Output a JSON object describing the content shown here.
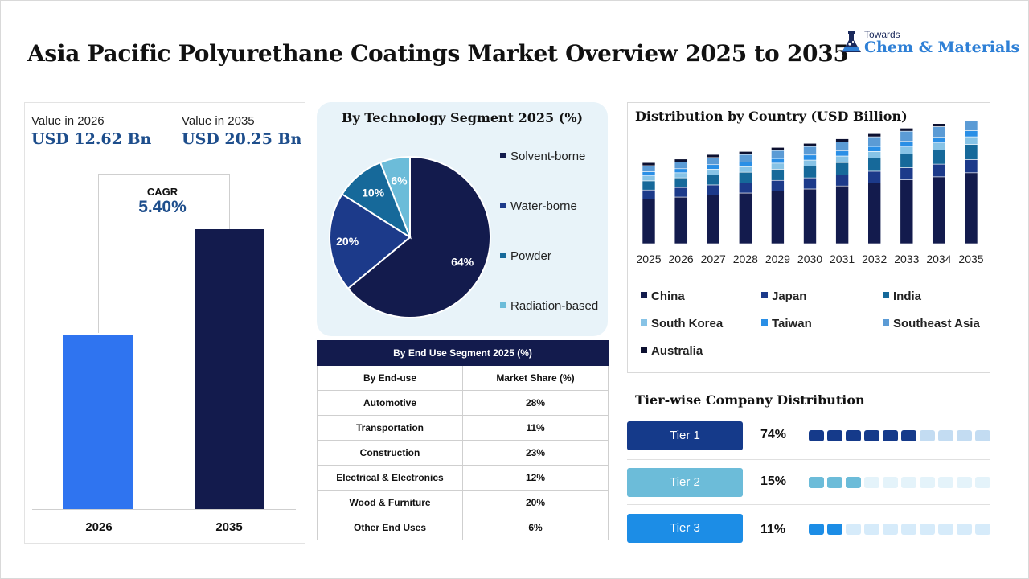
{
  "title": "Asia Pacific Polyurethane Coatings Market Overview 2025 to 2035",
  "logo": {
    "small": "Towards",
    "big": "Chem & Materials"
  },
  "values": {
    "left": {
      "label": "Value in 2026",
      "value": "USD 12.62 Bn"
    },
    "right": {
      "label": "Value in 2035",
      "value": "USD 20.25 Bn"
    }
  },
  "cagr": {
    "label": "CAGR",
    "value": "5.40%"
  },
  "chart_data": [
    {
      "type": "bar",
      "categories": [
        "2026",
        "2035"
      ],
      "values": [
        12.62,
        20.25
      ],
      "colors": [
        "#2f74f0",
        "#131b4d"
      ]
    },
    {
      "type": "pie",
      "title": "By Technology Segment 2025 (%)",
      "labels": [
        "Solvent-borne",
        "Water-borne",
        "Powder",
        "Radiation-based"
      ],
      "values": [
        64,
        20,
        10,
        6
      ],
      "value_labels": [
        "64%",
        "20%",
        "10%",
        "6%"
      ],
      "colors": [
        "#131b4d",
        "#1c3a8a",
        "#16699a",
        "#6cbcd9"
      ],
      "legend": "right"
    },
    {
      "type": "table",
      "title": "By End Use Segment 2025 (%)",
      "columns": [
        "By End-use",
        "Market Share (%)"
      ],
      "rows": [
        [
          "Automotive",
          "28%"
        ],
        [
          "Transportation",
          "11%"
        ],
        [
          "Construction",
          "23%"
        ],
        [
          "Electrical & Electronics",
          "12%"
        ],
        [
          "Wood & Furniture",
          "20%"
        ],
        [
          "Other End Uses",
          "6%"
        ]
      ]
    },
    {
      "type": "bar",
      "stacked": true,
      "title": "Distribution by Country (USD Billion)",
      "categories": [
        "2025",
        "2026",
        "2027",
        "2028",
        "2029",
        "2030",
        "2031",
        "2032",
        "2033",
        "2034",
        "2035"
      ],
      "series": [
        {
          "name": "China",
          "color": "#131b4d",
          "values": [
            4.4,
            4.6,
            4.8,
            5.0,
            5.2,
            5.4,
            5.7,
            6.0,
            6.3,
            6.6,
            7.0
          ]
        },
        {
          "name": "Japan",
          "color": "#1c3a8a",
          "values": [
            0.9,
            0.95,
            1.0,
            1.0,
            1.05,
            1.1,
            1.1,
            1.15,
            1.2,
            1.25,
            1.3
          ]
        },
        {
          "name": "India",
          "color": "#16699a",
          "values": [
            0.9,
            0.95,
            1.0,
            1.05,
            1.1,
            1.15,
            1.2,
            1.3,
            1.35,
            1.4,
            1.5
          ]
        },
        {
          "name": "South Korea",
          "color": "#87c3e6",
          "values": [
            0.5,
            0.5,
            0.55,
            0.55,
            0.6,
            0.6,
            0.65,
            0.65,
            0.7,
            0.7,
            0.75
          ]
        },
        {
          "name": "Taiwan",
          "color": "#2a8fe6",
          "values": [
            0.4,
            0.4,
            0.45,
            0.45,
            0.45,
            0.5,
            0.5,
            0.5,
            0.55,
            0.55,
            0.6
          ]
        },
        {
          "name": "Southeast Asia",
          "color": "#5b9bd5",
          "values": [
            0.6,
            0.65,
            0.7,
            0.75,
            0.8,
            0.85,
            0.9,
            0.95,
            1.0,
            1.05,
            1.15
          ]
        },
        {
          "name": "Australia",
          "color": "#0c1030",
          "values": [
            0.3,
            0.3,
            0.3,
            0.3,
            0.3,
            0.3,
            0.3,
            0.3,
            0.3,
            0.3,
            0.3
          ]
        }
      ],
      "legend": "bottom"
    }
  ],
  "tiers": {
    "title": "Tier-wise Company Distribution",
    "items": [
      {
        "label": "Tier 1",
        "value": "74%",
        "filled": 6,
        "total": 10,
        "color": "#153a8a",
        "light": "#c3dcf2",
        "text_color": "#ffffff"
      },
      {
        "label": "Tier 2",
        "value": "15%",
        "filled": 3,
        "total": 10,
        "color": "#6cbcd9",
        "light": "#e4f3fa",
        "text_color": "#ffffff"
      },
      {
        "label": "Tier 3",
        "value": "11%",
        "filled": 2,
        "total": 10,
        "color": "#1c8de6",
        "light": "#d6ebfa",
        "text_color": "#ffffff"
      }
    ]
  }
}
